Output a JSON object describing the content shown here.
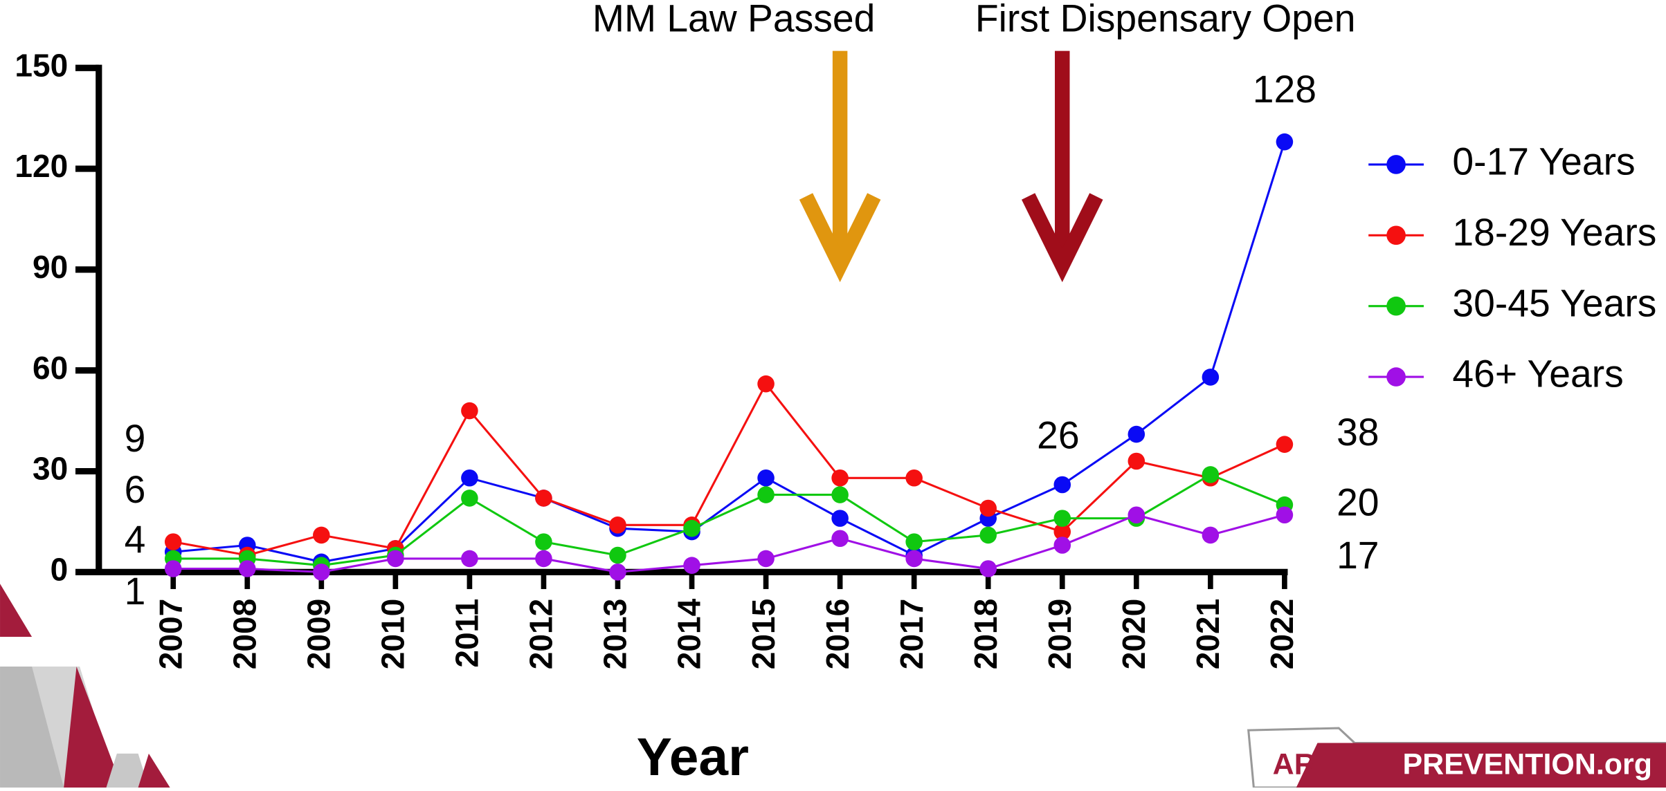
{
  "chart_data": {
    "type": "line",
    "x": [
      2007,
      2008,
      2009,
      2010,
      2011,
      2012,
      2013,
      2014,
      2015,
      2016,
      2017,
      2018,
      2019,
      2020,
      2021,
      2022
    ],
    "xlim": [
      2007,
      2022
    ],
    "xticks": [
      2007,
      2008,
      2009,
      2010,
      2011,
      2012,
      2013,
      2014,
      2015,
      2016,
      2017,
      2018,
      2019,
      2020,
      2021,
      2022
    ],
    "xlabel": "Year",
    "ylim": [
      0,
      150
    ],
    "yticks": [
      0,
      30,
      60,
      90,
      120,
      150
    ],
    "series": [
      {
        "name": "0-17 Years",
        "color": "#0a0af5",
        "values": [
          6,
          8,
          3,
          7,
          28,
          22,
          13,
          12,
          28,
          16,
          5,
          16,
          26,
          41,
          58,
          128
        ]
      },
      {
        "name": "18-29 Years",
        "color": "#f51010",
        "values": [
          9,
          5,
          11,
          7,
          48,
          22,
          14,
          14,
          56,
          28,
          28,
          19,
          12,
          33,
          28,
          38
        ]
      },
      {
        "name": "30-45 Years",
        "color": "#10c810",
        "values": [
          4,
          4,
          2,
          5,
          22,
          9,
          5,
          13,
          23,
          23,
          9,
          11,
          16,
          16,
          29,
          20
        ]
      },
      {
        "name": "46+ Years",
        "color": "#a010e6",
        "values": [
          1,
          1,
          0,
          4,
          4,
          4,
          0,
          2,
          4,
          10,
          4,
          1,
          8,
          17,
          11,
          17
        ]
      }
    ],
    "annotations": [
      {
        "text": "MM Law Passed",
        "x": 2016,
        "color": "#e0960f"
      },
      {
        "text": "First Dispensary Open",
        "x": 2019,
        "color": "#a00d1a"
      }
    ],
    "legend": "right"
  },
  "logo": {
    "mark": "AR",
    "text": "PREVENTION.org"
  }
}
